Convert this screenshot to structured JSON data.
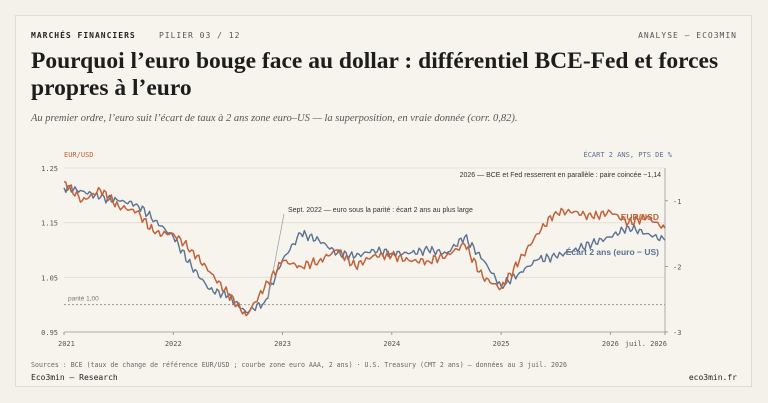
{
  "header": {
    "section": "MARCHÉS FINANCIERS",
    "pillar": "PILIER 03 / 12",
    "right": "ANALYSE — ECO3MIN"
  },
  "title": "Pourquoi l’euro bouge face au dollar : différentiel BCE-Fed et forces propres à l’euro",
  "subtitle": "Au premier ordre, l’euro suit l’écart de taux à 2 ans zone euro–US — la superposition, en vraie donnée (corr. 0,82).",
  "footer": {
    "sources": "Sources : BCE (taux de change de référence EUR/USD ; courbe zone euro AAA, 2 ans) · U.S. Treasury (CMT 2 ans) — données au 3 juil. 2026",
    "brand": "Eco3min — Research",
    "site": "eco3min.fr"
  },
  "colors": {
    "eurusd": "#c0623a",
    "spread": "#5a7191",
    "grid": "#e3ddd2",
    "text": "#555555"
  },
  "chart_data": {
    "type": "line",
    "left_axis_label": "EUR/USD",
    "right_axis_label": "ÉCART 2 ANS, PTS DE %",
    "x_ticks": [
      "2021",
      "2022",
      "2023",
      "2024",
      "2025",
      "2026",
      "juil. 2026"
    ],
    "y_left_ticks": [
      "0.95",
      "1.05",
      "1.15",
      "1.25"
    ],
    "y_right_ticks": [
      "-1",
      "-2",
      "-3"
    ],
    "y_left_range": [
      0.95,
      1.25
    ],
    "y_right_range": [
      -3.0,
      -0.5
    ],
    "parity_label": "parité 1,00",
    "parity_value": 1.0,
    "annotations": {
      "parity_2022": "Sept. 2022 — euro sous la parité : écart 2 ans au plus large",
      "converge_2026": "2026 — BCE et Fed resserrent en parallèle : paire coincée ~1,14"
    },
    "series": [
      {
        "name": "EUR/USD",
        "axis": "left",
        "x": [
          "2021-01",
          "2021-03",
          "2021-05",
          "2021-07",
          "2021-09",
          "2021-11",
          "2022-01",
          "2022-03",
          "2022-05",
          "2022-07",
          "2022-09",
          "2022-11",
          "2023-01",
          "2023-03",
          "2023-05",
          "2023-07",
          "2023-09",
          "2023-11",
          "2024-01",
          "2024-03",
          "2024-05",
          "2024-07",
          "2024-09",
          "2024-11",
          "2025-01",
          "2025-03",
          "2025-05",
          "2025-07",
          "2025-09",
          "2025-11",
          "2026-01",
          "2026-03",
          "2026-05",
          "2026-07"
        ],
        "values": [
          1.225,
          1.19,
          1.21,
          1.18,
          1.17,
          1.13,
          1.13,
          1.1,
          1.06,
          1.02,
          0.98,
          1.03,
          1.08,
          1.07,
          1.08,
          1.1,
          1.07,
          1.09,
          1.09,
          1.08,
          1.08,
          1.09,
          1.11,
          1.05,
          1.03,
          1.08,
          1.13,
          1.17,
          1.17,
          1.16,
          1.17,
          1.15,
          1.16,
          1.14
        ]
      },
      {
        "name": "Écart 2 ans (euro − US)",
        "axis": "right",
        "x": [
          "2021-01",
          "2021-03",
          "2021-05",
          "2021-07",
          "2021-09",
          "2021-11",
          "2022-01",
          "2022-03",
          "2022-05",
          "2022-07",
          "2022-09",
          "2022-11",
          "2023-01",
          "2023-03",
          "2023-05",
          "2023-07",
          "2023-09",
          "2023-11",
          "2024-01",
          "2024-03",
          "2024-05",
          "2024-07",
          "2024-09",
          "2024-11",
          "2025-01",
          "2025-03",
          "2025-05",
          "2025-07",
          "2025-09",
          "2025-11",
          "2026-01",
          "2026-03",
          "2026-05",
          "2026-07"
        ],
        "values": [
          -0.8,
          -0.85,
          -0.95,
          -1.0,
          -1.05,
          -1.3,
          -1.55,
          -2.0,
          -2.35,
          -2.45,
          -2.7,
          -2.55,
          -1.9,
          -1.5,
          -1.6,
          -1.8,
          -1.85,
          -1.75,
          -1.8,
          -1.8,
          -1.75,
          -1.8,
          -1.55,
          -1.9,
          -2.3,
          -2.1,
          -1.9,
          -1.85,
          -1.75,
          -1.65,
          -1.55,
          -1.4,
          -1.5,
          -1.6
        ]
      }
    ]
  }
}
